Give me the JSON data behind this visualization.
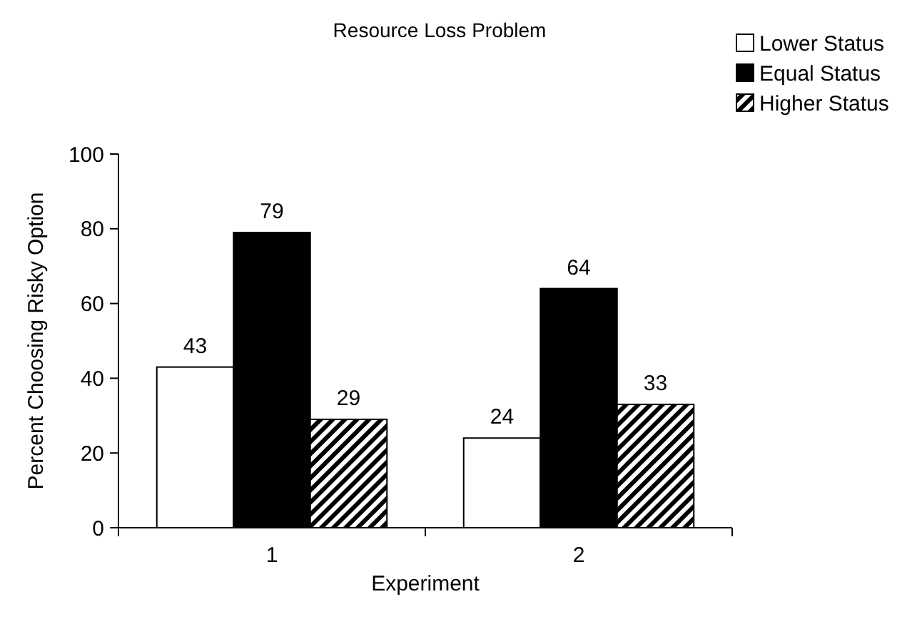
{
  "chart_data": {
    "type": "bar",
    "title": "Resource Loss Problem",
    "xlabel": "Experiment",
    "ylabel": "Percent Choosing Risky Option",
    "categories": [
      "1",
      "2"
    ],
    "series": [
      {
        "name": "Lower Status",
        "color": "#ffffff",
        "values": [
          43,
          24
        ]
      },
      {
        "name": "Equal Status",
        "color": "#000000",
        "values": [
          79,
          64
        ]
      },
      {
        "name": "Higher Status",
        "color": "#000000",
        "values": [
          29,
          33
        ]
      }
    ],
    "ylim": [
      0,
      100
    ],
    "yticks": [
      0,
      20,
      40,
      60,
      80,
      100
    ],
    "data_labels": true,
    "legend": "top right",
    "grid": false
  }
}
